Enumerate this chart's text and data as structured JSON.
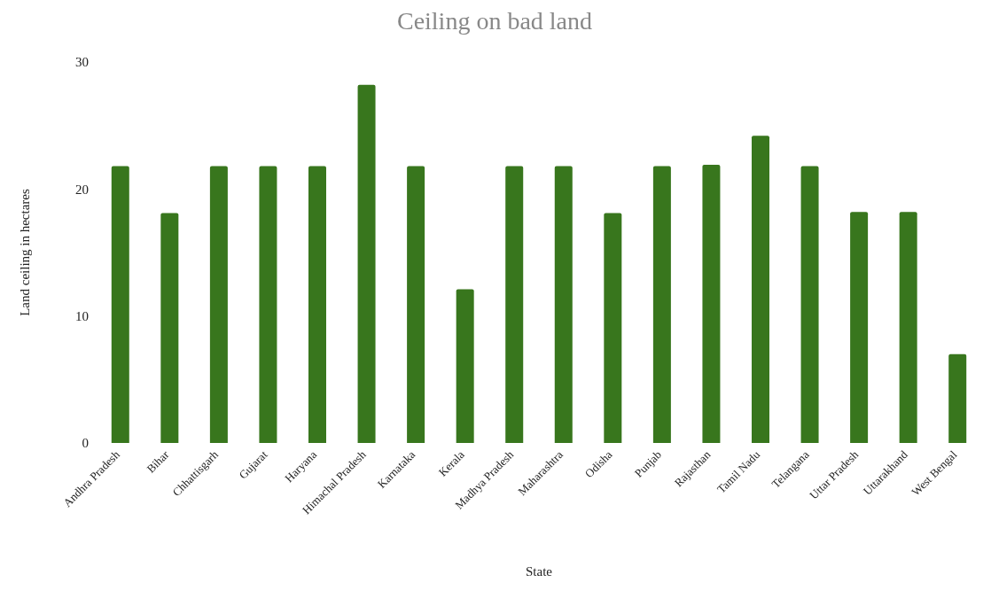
{
  "chart_data": {
    "type": "bar",
    "title": "Ceiling on bad land",
    "xlabel": "State",
    "ylabel": "Land ceiling in hectares",
    "categories": [
      "Andhra Pradesh",
      "Bihar",
      "Chhattisgarh",
      "Gujarat",
      "Haryana",
      "Himachal Pradesh",
      "Karnataka",
      "Kerala",
      "Madhya Pradesh",
      "Maharashtra",
      "Odisha",
      "Punjab",
      "Rajasthan",
      "Tamil Nadu",
      "Telangana",
      "Uttar Pradesh",
      "Uttarakhand",
      "West Bengal"
    ],
    "values": [
      21.8,
      18.1,
      21.8,
      21.8,
      21.8,
      28.2,
      21.8,
      12.1,
      21.8,
      21.8,
      18.1,
      21.8,
      21.9,
      24.2,
      21.8,
      18.2,
      18.2,
      7.0
    ],
    "color": "#38761d",
    "ylim": [
      0,
      30
    ],
    "yticks": [
      0,
      10,
      20,
      30
    ],
    "grid": false
  }
}
